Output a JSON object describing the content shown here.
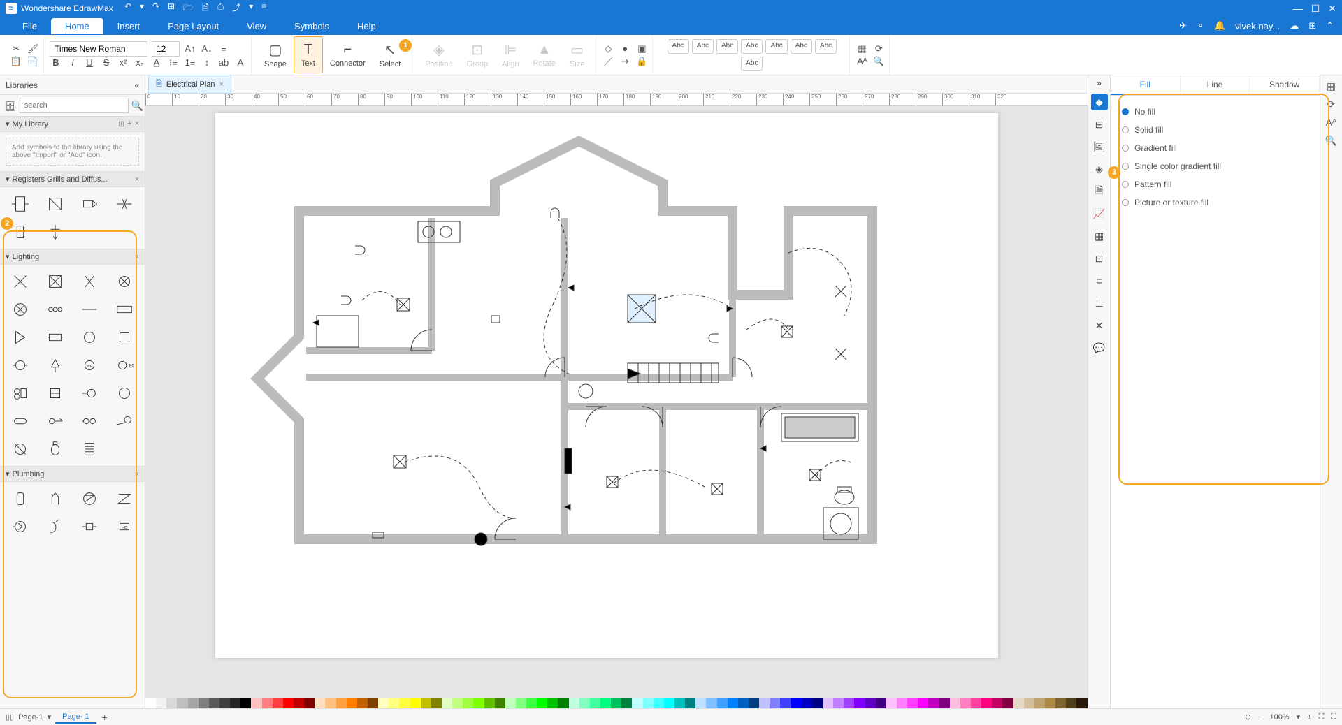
{
  "app": {
    "title": "Wondershare EdrawMax"
  },
  "menu": {
    "items": [
      "File",
      "Home",
      "Insert",
      "Page Layout",
      "View",
      "Symbols",
      "Help"
    ],
    "active": "Home",
    "user": "vivek.nay..."
  },
  "ribbon": {
    "font": "Times New Roman",
    "fontSize": "12",
    "tools": {
      "shape": "Shape",
      "text": "Text",
      "connector": "Connector",
      "select": "Select",
      "position": "Position",
      "group": "Group",
      "align": "Align",
      "rotate": "Rotate",
      "size": "Size"
    },
    "abc": "Abc"
  },
  "library": {
    "title": "Libraries",
    "searchPlaceholder": "search",
    "myLibrary": "My Library",
    "importHint": "Add symbols to the library using the above \"Import\" or \"Add\" icon.",
    "sections": {
      "registers": "Registers Grills and Diffus...",
      "lighting": "Lighting",
      "plumbing": "Plumbing"
    }
  },
  "docTab": {
    "name": "Electrical Plan"
  },
  "rulerTicks": [
    0,
    10,
    20,
    30,
    40,
    50,
    60,
    70,
    80,
    90,
    100,
    110,
    120,
    130,
    140,
    150,
    160,
    170,
    180,
    190,
    200,
    210,
    220,
    230,
    240,
    250,
    260,
    270,
    280,
    290,
    300,
    310,
    320
  ],
  "rightPanel": {
    "tabs": [
      "Fill",
      "Line",
      "Shadow"
    ],
    "activeTab": "Fill",
    "fillOptions": [
      "No fill",
      "Solid fill",
      "Gradient fill",
      "Single color gradient fill",
      "Pattern fill",
      "Picture or texture fill"
    ],
    "selectedFill": "No fill"
  },
  "callouts": {
    "c1": "1",
    "c2": "2",
    "c3": "3"
  },
  "colorSwatches": [
    "#ffffff",
    "#f2f2f2",
    "#d9d9d9",
    "#bfbfbf",
    "#a6a6a6",
    "#808080",
    "#595959",
    "#404040",
    "#262626",
    "#000000",
    "#ffc0c0",
    "#ff8080",
    "#ff4040",
    "#ff0000",
    "#c00000",
    "#800000",
    "#ffe0c0",
    "#ffc080",
    "#ffa040",
    "#ff8000",
    "#c06000",
    "#804000",
    "#ffffc0",
    "#ffff80",
    "#ffff40",
    "#ffff00",
    "#c0c000",
    "#808000",
    "#e0ffc0",
    "#c0ff80",
    "#a0ff40",
    "#80ff00",
    "#60c000",
    "#408000",
    "#c0ffc0",
    "#80ff80",
    "#40ff40",
    "#00ff00",
    "#00c000",
    "#008000",
    "#c0ffe0",
    "#80ffc0",
    "#40ffa0",
    "#00ff80",
    "#00c060",
    "#008040",
    "#c0ffff",
    "#80ffff",
    "#40ffff",
    "#00ffff",
    "#00c0c0",
    "#008080",
    "#c0e0ff",
    "#80c0ff",
    "#40a0ff",
    "#0080ff",
    "#0060c0",
    "#004080",
    "#c0c0ff",
    "#8080ff",
    "#4040ff",
    "#0000ff",
    "#0000c0",
    "#000080",
    "#e0c0ff",
    "#c080ff",
    "#a040ff",
    "#8000ff",
    "#6000c0",
    "#400080",
    "#ffc0ff",
    "#ff80ff",
    "#ff40ff",
    "#ff00ff",
    "#c000c0",
    "#800080",
    "#ffc0e0",
    "#ff80c0",
    "#ff40a0",
    "#ff0080",
    "#c00060",
    "#800040",
    "#e8d8c8",
    "#d4be9c",
    "#c0a470",
    "#ac8a44",
    "#7d6430",
    "#4e3e1c",
    "#2a1a0a"
  ],
  "status": {
    "page": "Page-1",
    "pageTab": "Page- 1",
    "zoom": "100%"
  }
}
